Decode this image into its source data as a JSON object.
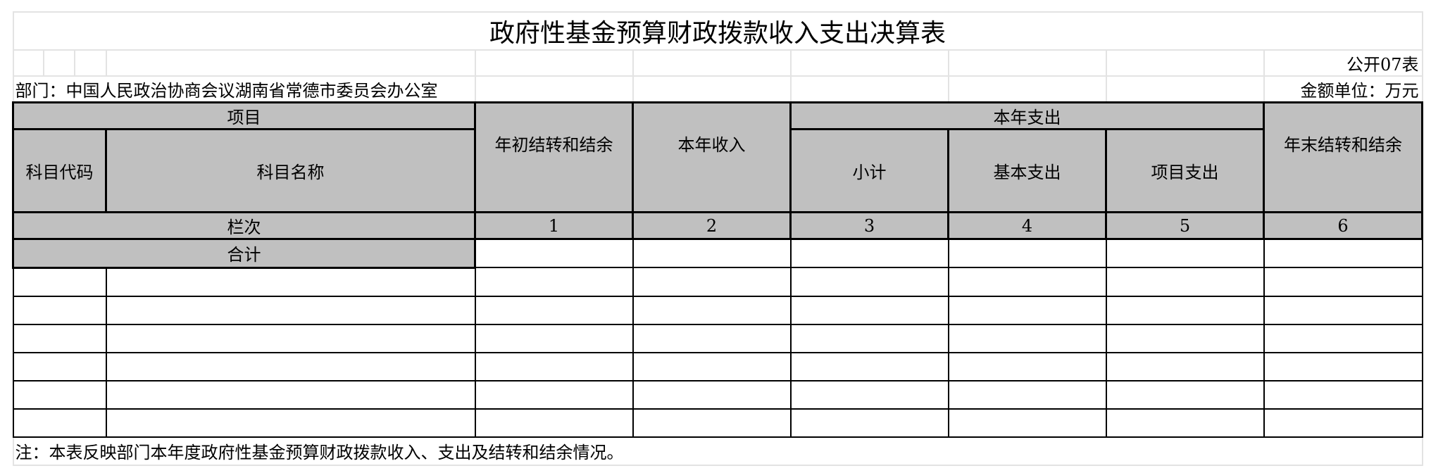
{
  "title": "政府性基金预算财政拨款收入支出决算表",
  "form_code": "公开07表",
  "department": "部门：中国人民政治协商会议湖南省常德市委员会办公室",
  "unit": "金额单位：万元",
  "header": {
    "item": "项目",
    "subject_code": "科目代码",
    "subject_name": "科目名称",
    "opening_balance": "年初结转和结余",
    "current_income": "本年收入",
    "current_expense": "本年支出",
    "subtotal": "小计",
    "basic_expense": "基本支出",
    "project_expense": "项目支出",
    "closing_balance": "年末结转和结余"
  },
  "column_index_label": "栏次",
  "column_numbers": [
    "1",
    "2",
    "3",
    "4",
    "5",
    "6"
  ],
  "total_label": "合计",
  "note": "注：本表反映部门本年度政府性基金预算财政拨款收入、支出及结转和结余情况。"
}
